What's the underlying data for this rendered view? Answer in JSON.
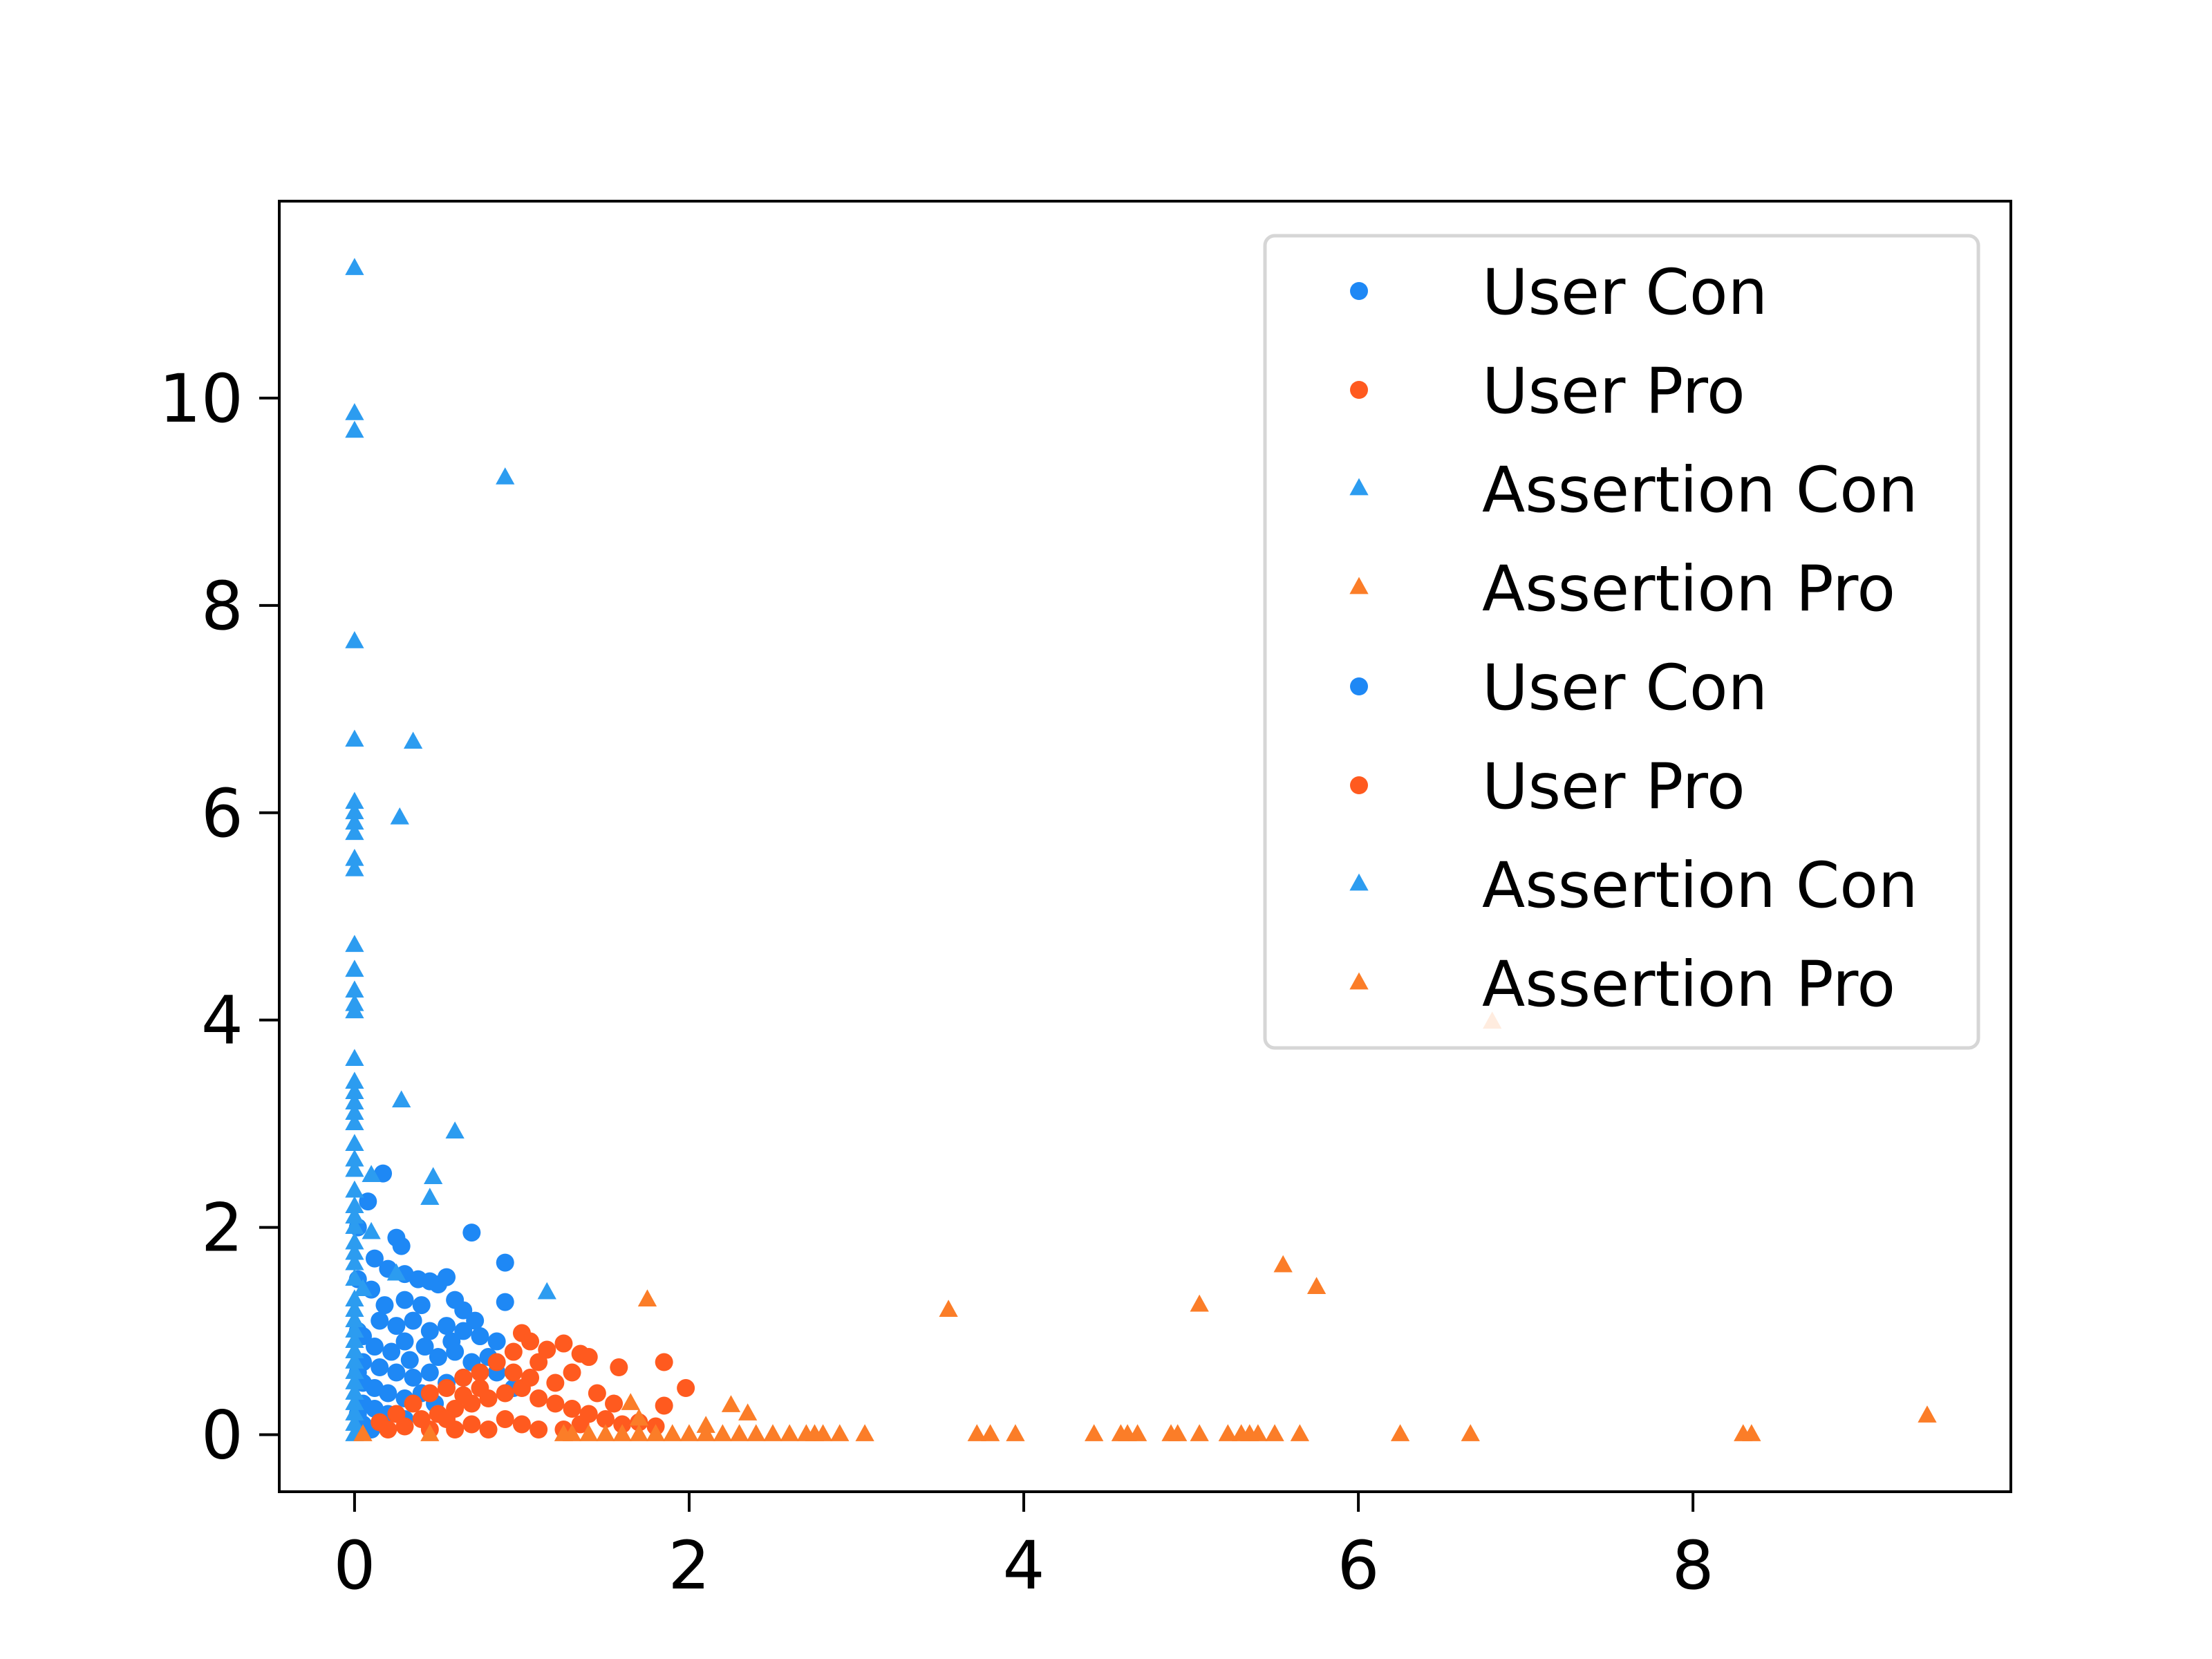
{
  "chart_data": {
    "type": "scatter",
    "title": "",
    "xlabel": "",
    "ylabel": "",
    "xlim": [
      -0.45,
      9.9
    ],
    "ylim": [
      -0.55,
      11.9
    ],
    "x_ticks": [
      0,
      2,
      4,
      6,
      8
    ],
    "y_ticks": [
      0,
      2,
      4,
      6,
      8,
      10
    ],
    "grid": false,
    "legend_position": "top-right",
    "legend": [
      {
        "label": "User Con",
        "marker": "circle",
        "color": "#1e88f5"
      },
      {
        "label": "User Pro",
        "marker": "circle",
        "color": "#ff5a1f"
      },
      {
        "label": "Assertion Con",
        "marker": "triangle",
        "color": "#2c9cf0"
      },
      {
        "label": "Assertion Pro",
        "marker": "triangle",
        "color": "#fb7d28"
      },
      {
        "label": "User Con",
        "marker": "circle",
        "color": "#1e88f5"
      },
      {
        "label": "User Pro",
        "marker": "circle",
        "color": "#ff5a1f"
      },
      {
        "label": "Assertion Con",
        "marker": "triangle",
        "color": "#2c9cf0"
      },
      {
        "label": "Assertion Pro",
        "marker": "triangle",
        "color": "#fb7d28"
      }
    ],
    "series": [
      {
        "name": "User Con",
        "marker": "circle",
        "color": "#1e88f5",
        "points": [
          [
            0.17,
            2.52
          ],
          [
            0.08,
            2.25
          ],
          [
            0.25,
            1.9
          ],
          [
            0.28,
            1.82
          ],
          [
            0.12,
            1.7
          ],
          [
            0.2,
            1.6
          ],
          [
            0.3,
            1.55
          ],
          [
            0.38,
            1.5
          ],
          [
            0.45,
            1.48
          ],
          [
            0.5,
            1.45
          ],
          [
            0.55,
            1.52
          ],
          [
            0.7,
            1.95
          ],
          [
            0.9,
            1.66
          ],
          [
            0.1,
            1.4
          ],
          [
            0.3,
            1.3
          ],
          [
            0.4,
            1.25
          ],
          [
            0.6,
            1.3
          ],
          [
            0.65,
            1.2
          ],
          [
            0.9,
            1.28
          ],
          [
            0.15,
            1.1
          ],
          [
            0.25,
            1.05
          ],
          [
            0.35,
            1.1
          ],
          [
            0.45,
            1.0
          ],
          [
            0.55,
            1.05
          ],
          [
            0.65,
            1.0
          ],
          [
            0.75,
            0.95
          ],
          [
            0.85,
            0.9
          ],
          [
            0.05,
            0.95
          ],
          [
            0.12,
            0.85
          ],
          [
            0.22,
            0.8
          ],
          [
            0.3,
            0.9
          ],
          [
            0.42,
            0.85
          ],
          [
            0.5,
            0.75
          ],
          [
            0.6,
            0.8
          ],
          [
            0.7,
            0.7
          ],
          [
            0.8,
            0.75
          ],
          [
            0.05,
            0.7
          ],
          [
            0.15,
            0.65
          ],
          [
            0.25,
            0.6
          ],
          [
            0.35,
            0.55
          ],
          [
            0.45,
            0.6
          ],
          [
            0.55,
            0.5
          ],
          [
            0.65,
            0.55
          ],
          [
            0.05,
            0.5
          ],
          [
            0.12,
            0.45
          ],
          [
            0.2,
            0.4
          ],
          [
            0.3,
            0.35
          ],
          [
            0.4,
            0.4
          ],
          [
            0.05,
            0.3
          ],
          [
            0.12,
            0.25
          ],
          [
            0.2,
            0.2
          ],
          [
            0.3,
            0.15
          ],
          [
            0.05,
            0.1
          ],
          [
            0.1,
            0.05
          ],
          [
            0.02,
            0.2
          ],
          [
            0.02,
            0.6
          ],
          [
            0.02,
            1.0
          ],
          [
            0.02,
            1.5
          ],
          [
            0.02,
            2.0
          ],
          [
            0.18,
            1.25
          ],
          [
            0.33,
            0.72
          ],
          [
            0.48,
            0.3
          ],
          [
            0.58,
            0.9
          ],
          [
            0.72,
            1.1
          ],
          [
            0.85,
            0.6
          ],
          [
            0.95,
            0.45
          ]
        ]
      },
      {
        "name": "User Pro",
        "marker": "circle",
        "color": "#ff5a1f",
        "points": [
          [
            1.0,
            0.98
          ],
          [
            1.05,
            0.9
          ],
          [
            1.15,
            0.82
          ],
          [
            1.25,
            0.88
          ],
          [
            1.35,
            0.78
          ],
          [
            1.4,
            0.75
          ],
          [
            1.58,
            0.65
          ],
          [
            1.85,
            0.7
          ],
          [
            1.98,
            0.45
          ],
          [
            1.85,
            0.28
          ],
          [
            1.45,
            0.4
          ],
          [
            1.55,
            0.3
          ],
          [
            1.3,
            0.6
          ],
          [
            1.2,
            0.5
          ],
          [
            1.1,
            0.7
          ],
          [
            0.95,
            0.8
          ],
          [
            0.85,
            0.7
          ],
          [
            0.75,
            0.6
          ],
          [
            0.65,
            0.55
          ],
          [
            0.55,
            0.45
          ],
          [
            0.45,
            0.4
          ],
          [
            0.35,
            0.3
          ],
          [
            0.25,
            0.2
          ],
          [
            0.15,
            0.12
          ],
          [
            0.2,
            0.05
          ],
          [
            0.3,
            0.08
          ],
          [
            0.4,
            0.15
          ],
          [
            0.5,
            0.2
          ],
          [
            0.6,
            0.25
          ],
          [
            0.7,
            0.3
          ],
          [
            0.8,
            0.35
          ],
          [
            0.9,
            0.4
          ],
          [
            1.0,
            0.45
          ],
          [
            1.1,
            0.35
          ],
          [
            1.2,
            0.3
          ],
          [
            1.3,
            0.25
          ],
          [
            1.4,
            0.2
          ],
          [
            1.5,
            0.15
          ],
          [
            1.6,
            0.1
          ],
          [
            1.7,
            0.12
          ],
          [
            1.8,
            0.08
          ],
          [
            0.9,
            0.15
          ],
          [
            1.0,
            0.1
          ],
          [
            1.1,
            0.05
          ],
          [
            0.8,
            0.05
          ],
          [
            0.7,
            0.1
          ],
          [
            0.6,
            0.05
          ],
          [
            0.95,
            0.6
          ],
          [
            1.05,
            0.55
          ],
          [
            0.75,
            0.45
          ],
          [
            0.55,
            0.15
          ],
          [
            1.25,
            0.05
          ],
          [
            1.35,
            0.1
          ],
          [
            0.45,
            0.05
          ],
          [
            0.65,
            0.38
          ]
        ]
      },
      {
        "name": "Assertion Con",
        "marker": "triangle",
        "color": "#2c9cf0",
        "points": [
          [
            0,
            11.25
          ],
          [
            0,
            9.85
          ],
          [
            0,
            9.68
          ],
          [
            0.9,
            9.23
          ],
          [
            0,
            7.65
          ],
          [
            0,
            6.7
          ],
          [
            0.35,
            6.68
          ],
          [
            0,
            6.1
          ],
          [
            0,
            6.0
          ],
          [
            0,
            5.9
          ],
          [
            0.27,
            5.95
          ],
          [
            0,
            5.8
          ],
          [
            0,
            5.55
          ],
          [
            0,
            5.45
          ],
          [
            0,
            4.72
          ],
          [
            0,
            4.48
          ],
          [
            0,
            4.28
          ],
          [
            0,
            4.15
          ],
          [
            0,
            4.08
          ],
          [
            0,
            3.62
          ],
          [
            0,
            3.4
          ],
          [
            0,
            3.3
          ],
          [
            0,
            3.2
          ],
          [
            0.28,
            3.22
          ],
          [
            0,
            3.1
          ],
          [
            0,
            3.0
          ],
          [
            0.6,
            2.92
          ],
          [
            0,
            2.8
          ],
          [
            0,
            2.65
          ],
          [
            0,
            2.55
          ],
          [
            0.1,
            2.5
          ],
          [
            0.47,
            2.48
          ],
          [
            0,
            2.35
          ],
          [
            0.45,
            2.28
          ],
          [
            0,
            2.2
          ],
          [
            0,
            2.1
          ],
          [
            0,
            2.0
          ],
          [
            0.1,
            1.95
          ],
          [
            0,
            1.85
          ],
          [
            0,
            1.75
          ],
          [
            0,
            1.65
          ],
          [
            0.25,
            1.55
          ],
          [
            0,
            1.5
          ],
          [
            0.05,
            1.4
          ],
          [
            1.15,
            1.37
          ],
          [
            0,
            1.3
          ],
          [
            0,
            1.2
          ],
          [
            0,
            1.1
          ],
          [
            0,
            1.0
          ],
          [
            0,
            0.9
          ],
          [
            0,
            0.8
          ],
          [
            0,
            0.7
          ],
          [
            0,
            0.6
          ],
          [
            0,
            0.5
          ],
          [
            0,
            0.4
          ],
          [
            0,
            0.3
          ],
          [
            0,
            0.2
          ],
          [
            0,
            0.1
          ],
          [
            0,
            0.0
          ]
        ]
      },
      {
        "name": "Assertion Pro",
        "marker": "triangle",
        "color": "#fb7d28",
        "points": [
          [
            9.4,
            0.18
          ],
          [
            6.8,
            3.98
          ],
          [
            5.55,
            1.63
          ],
          [
            5.75,
            1.42
          ],
          [
            5.05,
            1.25
          ],
          [
            3.55,
            1.2
          ],
          [
            1.75,
            1.3
          ],
          [
            2.25,
            0.28
          ],
          [
            2.35,
            0.2
          ],
          [
            1.65,
            0.3
          ],
          [
            1.7,
            0.15
          ],
          [
            2.1,
            0.08
          ],
          [
            8.3,
            0
          ],
          [
            8.35,
            0
          ],
          [
            6.67,
            0
          ],
          [
            6.25,
            0
          ],
          [
            5.65,
            0
          ],
          [
            5.5,
            0
          ],
          [
            5.4,
            0
          ],
          [
            5.35,
            0
          ],
          [
            5.3,
            0
          ],
          [
            5.22,
            0
          ],
          [
            5.05,
            0
          ],
          [
            4.92,
            0
          ],
          [
            4.88,
            0
          ],
          [
            4.68,
            0
          ],
          [
            4.62,
            0
          ],
          [
            4.58,
            0
          ],
          [
            4.42,
            0
          ],
          [
            3.95,
            0
          ],
          [
            3.8,
            0
          ],
          [
            3.72,
            0
          ],
          [
            3.05,
            0
          ],
          [
            2.9,
            0
          ],
          [
            2.8,
            0
          ],
          [
            2.75,
            0
          ],
          [
            2.7,
            0
          ],
          [
            2.6,
            0
          ],
          [
            2.5,
            0
          ],
          [
            2.4,
            0
          ],
          [
            2.3,
            0
          ],
          [
            2.2,
            0
          ],
          [
            2.1,
            0
          ],
          [
            2.0,
            0
          ],
          [
            1.9,
            0
          ],
          [
            1.8,
            0
          ],
          [
            1.7,
            0
          ],
          [
            1.6,
            0
          ],
          [
            1.5,
            0
          ],
          [
            1.4,
            0
          ],
          [
            1.3,
            0
          ],
          [
            1.25,
            0
          ],
          [
            0.45,
            0
          ],
          [
            0.05,
            0
          ]
        ]
      }
    ]
  }
}
